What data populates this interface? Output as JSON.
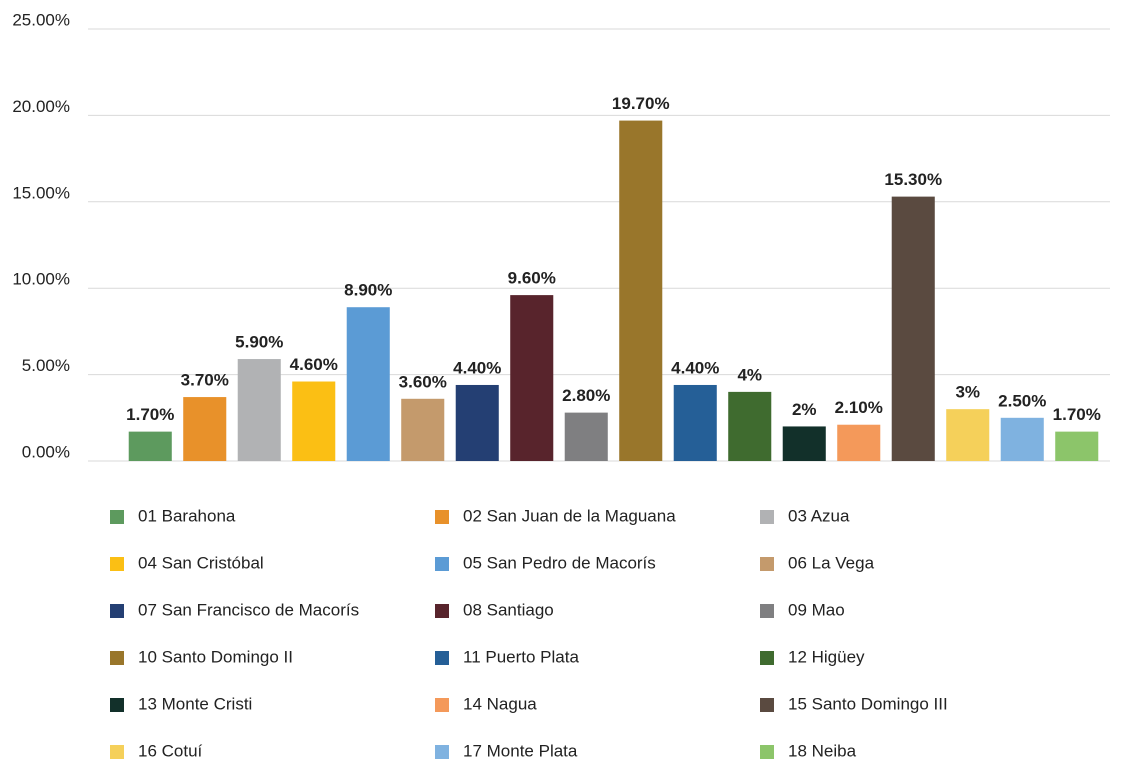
{
  "chart_data": {
    "type": "bar",
    "categories": [
      "01 Barahona",
      "02 San Juan de la Maguana",
      "03 Azua",
      "04 San Cristóbal",
      "05 San Pedro de Macorís",
      "06 La Vega",
      "07 San Francisco de Macorís",
      "08 Santiago",
      "09 Mao",
      "10 Santo Domingo II",
      "11 Puerto Plata",
      "12 Higüey",
      "13 Monte Cristi",
      "14 Nagua",
      "15 Santo Domingo III",
      "16 Cotuí",
      "17 Monte Plata",
      "18 Neiba"
    ],
    "values": [
      1.7,
      3.7,
      5.9,
      4.6,
      8.9,
      3.6,
      4.4,
      9.6,
      2.8,
      19.7,
      4.4,
      4,
      2,
      2.1,
      15.3,
      3,
      2.5,
      1.7
    ],
    "value_labels": [
      "1.70%",
      "3.70%",
      "5.90%",
      "4.60%",
      "8.90%",
      "3.60%",
      "4.40%",
      "9.60%",
      "2.80%",
      "19.70%",
      "4.40%",
      "4%",
      "2%",
      "2.10%",
      "15.30%",
      "3%",
      "2.50%",
      "1.70%"
    ],
    "colors": [
      "#5d9a5e",
      "#e8912a",
      "#b1b2b4",
      "#fbbf14",
      "#5b9bd5",
      "#c49a6c",
      "#243f73",
      "#58242c",
      "#7f7f81",
      "#99762b",
      "#255f97",
      "#3f6b2f",
      "#12302a",
      "#f4995a",
      "#5a4a40",
      "#f5d05a",
      "#7fb2e0",
      "#8cc56a"
    ],
    "ylim": [
      0,
      25
    ],
    "yticks": [
      {
        "value": 0,
        "label": "0.00%"
      },
      {
        "value": 5,
        "label": "5.00%"
      },
      {
        "value": 10,
        "label": "10.00%"
      },
      {
        "value": 15,
        "label": "15.00%"
      },
      {
        "value": 20,
        "label": "20.00%"
      },
      {
        "value": 25,
        "label": "25.00%"
      }
    ],
    "grid": true,
    "legend": "bottom"
  }
}
